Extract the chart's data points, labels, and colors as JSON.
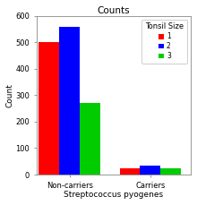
{
  "title": "Counts",
  "xlabel": "Streptococcus pyogenes",
  "ylabel": "Count",
  "ylim": [
    0,
    600
  ],
  "yticks": [
    0,
    100,
    200,
    300,
    400,
    500,
    600
  ],
  "groups": [
    "Non-carriers",
    "Carriers"
  ],
  "legend_title": "Tonsil Size",
  "series": [
    {
      "label": "1",
      "color": "#ff0000",
      "values": [
        500,
        25
      ]
    },
    {
      "label": "2",
      "color": "#0000ff",
      "values": [
        560,
        35
      ]
    },
    {
      "label": "3",
      "color": "#00cc00",
      "values": [
        270,
        25
      ]
    }
  ],
  "bar_width": 0.28,
  "group_positions": [
    0.45,
    1.55
  ],
  "xlim": [
    0.0,
    2.1
  ],
  "background_color": "#ffffff",
  "plot_bg_color": "#ffffff",
  "title_fontsize": 7.5,
  "axis_label_fontsize": 6.5,
  "tick_fontsize": 6,
  "legend_fontsize": 5.5,
  "legend_title_fontsize": 6
}
